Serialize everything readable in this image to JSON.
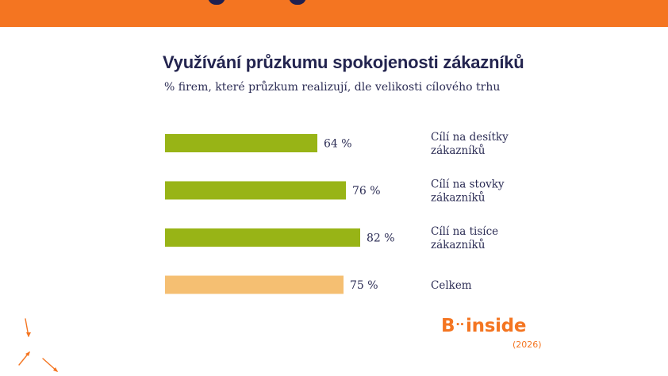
{
  "header_band": {
    "color": "#f47521"
  },
  "brand": {
    "name_left": "B",
    "name_right": "inside",
    "year": "(2026)",
    "color": "#f47521"
  },
  "chart_data": {
    "type": "bar",
    "orientation": "horizontal",
    "title": "Využívání průzkumu spokojenosti zákazníků",
    "subtitle": "% firem, které průzkum realizují, dle velikosti cílového trhu",
    "categories": [
      [
        "Cílí na desítky",
        "zákazníků"
      ],
      [
        "Cílí na stovky",
        "zákazníků"
      ],
      [
        "Cílí na tisíce",
        "zákazníků"
      ],
      [
        "Celkem"
      ]
    ],
    "values": [
      64,
      76,
      82,
      75
    ],
    "value_labels": [
      "64 %",
      "76 %",
      "82 %",
      "75 %"
    ],
    "unit": "%",
    "xlim": [
      0,
      100
    ],
    "bar_colors": [
      "#98b416",
      "#98b416",
      "#98b416",
      "#f5bf72"
    ],
    "grid": false,
    "legend": "none"
  }
}
